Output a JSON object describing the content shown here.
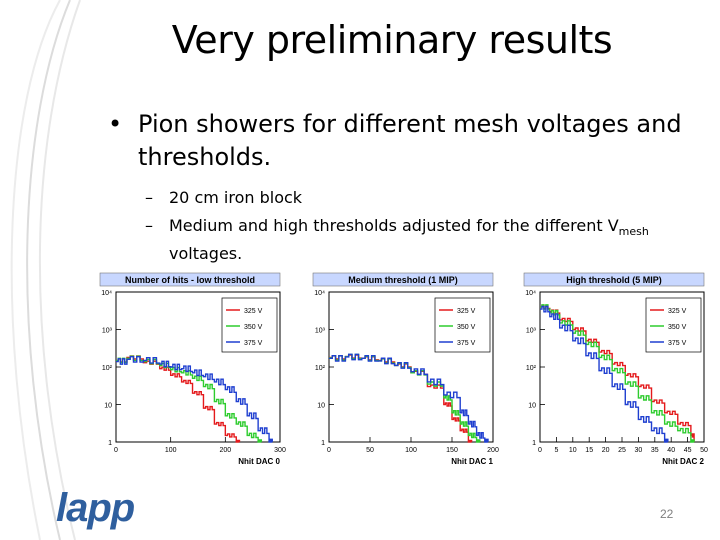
{
  "slide": {
    "title": "Very preliminary results",
    "bullet": "Pion showers for different mesh voltages and thresholds.",
    "sub1": "20 cm iron block",
    "sub2_pre": "Medium and high thresholds adjusted for the different V",
    "sub2_sub": "mesh",
    "sub2_post": "voltages.",
    "logo": "lapp",
    "page_number": "22"
  },
  "colors": {
    "v325": "#e41a1c",
    "v350": "#2ecc2e",
    "v375": "#1f3fd0",
    "title_bg": "#c8d7ff"
  },
  "chart_data": [
    {
      "type": "line",
      "title": "Number of hits - low threshold",
      "xlabel": "Nhit DAC 0",
      "xlim": [
        0,
        300
      ],
      "ylim": [
        1,
        10000
      ],
      "log_y": true,
      "x_ticks": [
        "0",
        "100",
        "200",
        "300"
      ],
      "y_ticks": [
        "1",
        "10",
        "10²",
        "10³",
        "10⁴"
      ],
      "legend_position": "top-right",
      "series": [
        {
          "name": "325 V",
          "x": [
            0,
            20,
            50,
            80,
            100,
            120,
            140,
            160,
            180,
            200,
            220
          ],
          "y": [
            150,
            180,
            130,
            90,
            60,
            40,
            20,
            8,
            3,
            1.5,
            1
          ]
        },
        {
          "name": "350 V",
          "x": [
            0,
            20,
            50,
            80,
            100,
            120,
            140,
            160,
            180,
            200,
            220,
            240,
            260
          ],
          "y": [
            150,
            170,
            140,
            110,
            85,
            70,
            50,
            30,
            12,
            5,
            3,
            1.5,
            1
          ]
        },
        {
          "name": "375 V",
          "x": [
            0,
            20,
            50,
            80,
            100,
            120,
            140,
            160,
            180,
            200,
            220,
            240,
            260,
            280
          ],
          "y": [
            140,
            160,
            150,
            120,
            100,
            90,
            70,
            55,
            40,
            25,
            12,
            5,
            2,
            1
          ]
        }
      ]
    },
    {
      "type": "line",
      "title": "Medium threshold (1 MIP)",
      "xlabel": "Nhit DAC 1",
      "xlim": [
        0,
        200
      ],
      "ylim": [
        1,
        10000
      ],
      "log_y": true,
      "x_ticks": [
        "0",
        "50",
        "100",
        "150",
        "200"
      ],
      "y_ticks": [
        "1",
        "10",
        "10²",
        "10³",
        "10⁴"
      ],
      "legend_position": "top-right",
      "series": [
        {
          "name": "325 V",
          "x": [
            0,
            20,
            40,
            60,
            80,
            100,
            120,
            140,
            150,
            160,
            170
          ],
          "y": [
            180,
            190,
            170,
            150,
            110,
            70,
            30,
            10,
            4,
            2,
            1
          ]
        },
        {
          "name": "350 V",
          "x": [
            0,
            20,
            40,
            60,
            80,
            100,
            120,
            140,
            150,
            160,
            170,
            180
          ],
          "y": [
            175,
            190,
            170,
            145,
            110,
            70,
            35,
            15,
            6,
            3,
            1.5,
            1
          ]
        },
        {
          "name": "375 V",
          "x": [
            0,
            20,
            40,
            60,
            80,
            100,
            120,
            140,
            160,
            170,
            180,
            190
          ],
          "y": [
            170,
            185,
            170,
            145,
            110,
            75,
            40,
            18,
            6,
            3,
            1.5,
            1
          ]
        }
      ]
    },
    {
      "type": "line",
      "title": "High threshold (5 MIP)",
      "xlabel": "Nhit DAC 2",
      "xlim": [
        0,
        50
      ],
      "ylim": [
        1,
        10000
      ],
      "log_y": true,
      "x_ticks": [
        "0",
        "5",
        "10",
        "15",
        "20",
        "25",
        "30",
        "35",
        "40",
        "45",
        "50"
      ],
      "y_ticks": [
        "1",
        "10",
        "10²",
        "10³",
        "10⁴"
      ],
      "legend_position": "top-right",
      "series": [
        {
          "name": "325 V",
          "x": [
            0,
            3,
            6,
            10,
            14,
            18,
            22,
            26,
            30,
            34,
            38,
            42,
            46
          ],
          "y": [
            4000,
            3000,
            1800,
            1000,
            500,
            250,
            120,
            60,
            30,
            12,
            6,
            3,
            1.5
          ]
        },
        {
          "name": "350 V",
          "x": [
            0,
            3,
            6,
            10,
            14,
            18,
            22,
            26,
            30,
            34,
            38,
            42,
            46
          ],
          "y": [
            4000,
            2800,
            1500,
            800,
            400,
            180,
            80,
            35,
            15,
            6,
            3,
            2,
            1
          ]
        },
        {
          "name": "375 V",
          "x": [
            0,
            3,
            6,
            10,
            14,
            18,
            22,
            26,
            30,
            34,
            38
          ],
          "y": [
            3500,
            2200,
            1100,
            500,
            200,
            80,
            30,
            10,
            4,
            2,
            1
          ]
        }
      ]
    }
  ]
}
